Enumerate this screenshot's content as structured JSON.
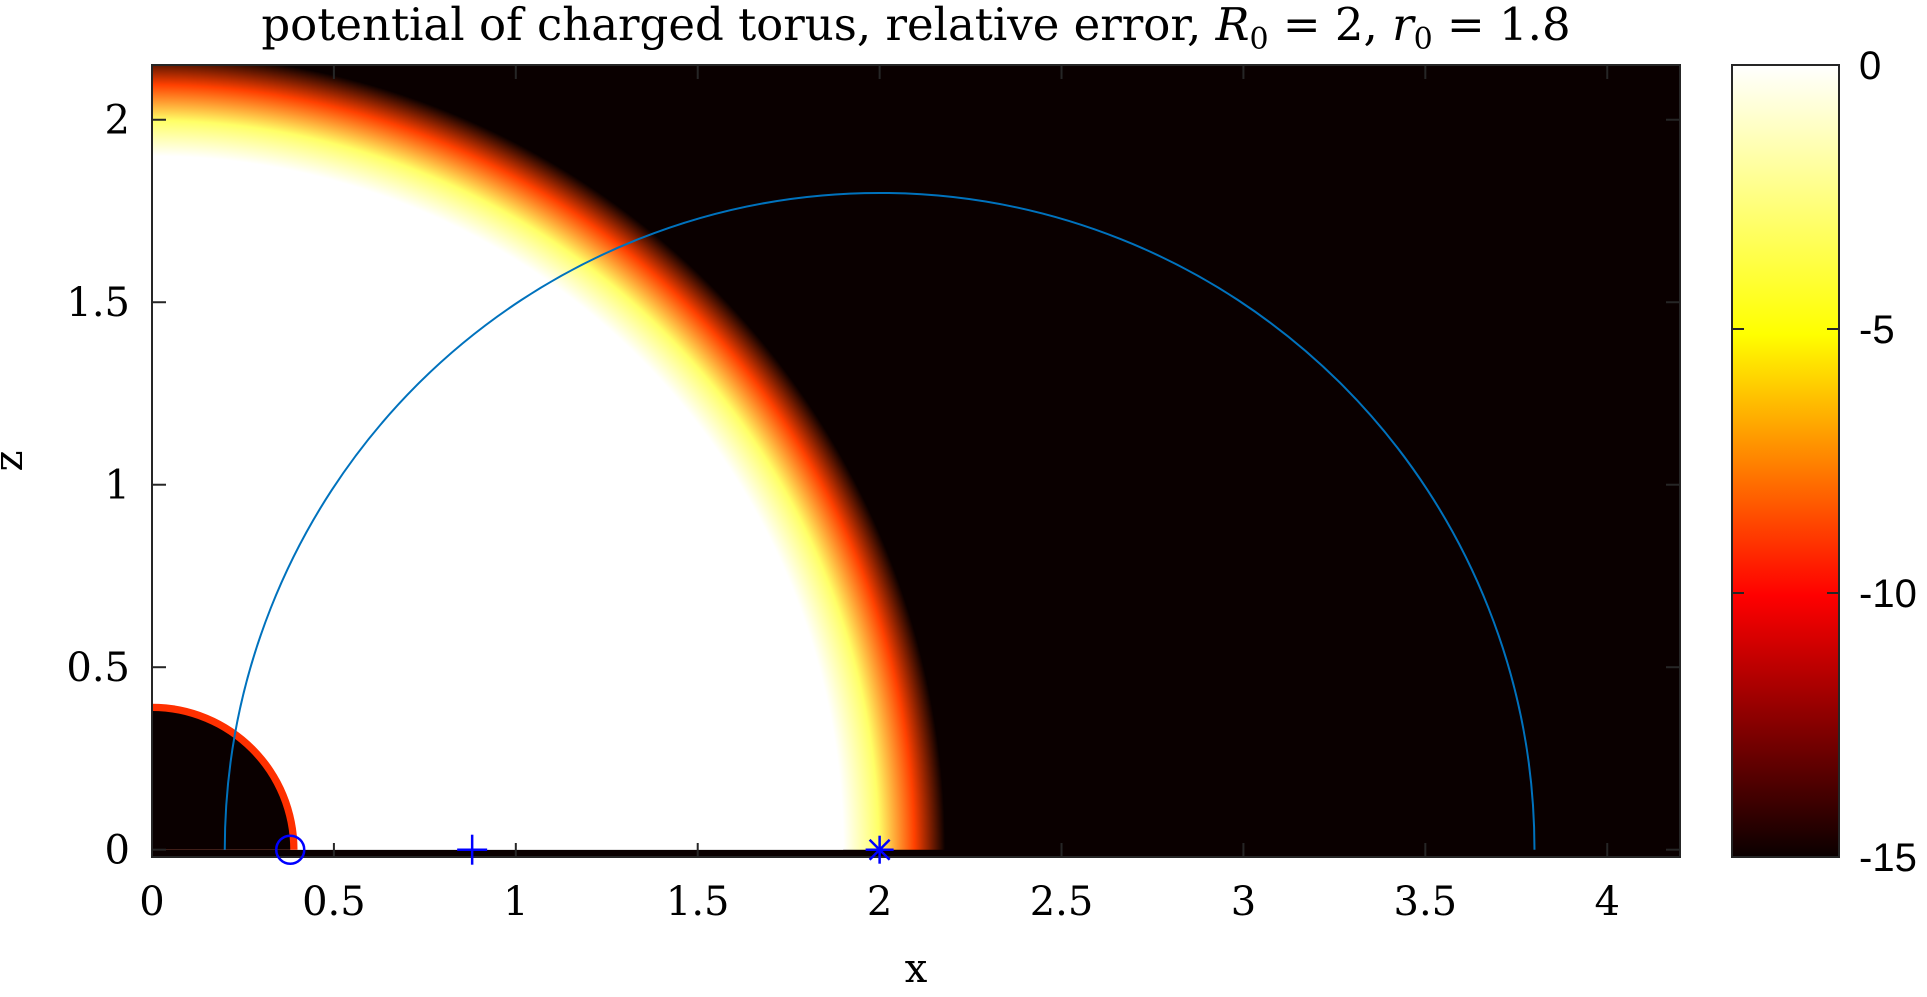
{
  "chart_data": {
    "type": "heatmap",
    "title": "potential of charged torus, relative error, R₀ = 2, r₀ = 1.8",
    "title_parts": {
      "prefix": "potential of charged torus, relative error, ",
      "R_sym": "R",
      "R_sub": "0",
      "R_val": " = 2, ",
      "r_sym": "r",
      "r_sub": "0",
      "r_val": " = 1.8"
    },
    "xlabel": "x",
    "ylabel": "z",
    "xlim": [
      0,
      4.2
    ],
    "ylim": [
      -0.02,
      2.15
    ],
    "xticks": [
      0,
      0.5,
      1,
      1.5,
      2,
      2.5,
      3,
      3.5,
      4
    ],
    "xtick_labels": [
      "0",
      "0.5",
      "1",
      "1.5",
      "2",
      "2.5",
      "3",
      "3.5",
      "4"
    ],
    "yticks": [
      0,
      0.5,
      1,
      1.5,
      2
    ],
    "ytick_labels": [
      "0",
      "0.5",
      "1",
      "1.5",
      "2"
    ],
    "grid": false,
    "colormap": "hot",
    "colorbar": {
      "range": [
        -15,
        0
      ],
      "ticks": [
        0,
        -5,
        -10,
        -15
      ],
      "tick_labels": [
        "0",
        "-5",
        "-10",
        "-15"
      ],
      "placement": "right"
    },
    "regions": [
      {
        "name": "inner dark disk",
        "shape": "quarter-disk",
        "center": [
          0,
          0
        ],
        "radius": 0.38,
        "value": -15
      },
      {
        "name": "bright quarter annulus",
        "shape": "quarter-annulus",
        "center": [
          0,
          0
        ],
        "inner_radius": 0.38,
        "outer_radius": 2.1,
        "value": 0
      },
      {
        "name": "transition band",
        "shape": "quarter-annulus",
        "center": [
          0,
          0
        ],
        "inner_radius": 1.9,
        "outer_radius": 2.18,
        "value_range": [
          -15,
          0
        ]
      },
      {
        "name": "outer dark region",
        "shape": "outside",
        "center": [
          0,
          0
        ],
        "radius": 2.18,
        "value": -15
      }
    ],
    "curve": {
      "name": "",
      "shape": "semicircle",
      "center": [
        2.0,
        0
      ],
      "radius": 1.8,
      "color": "#0072BD"
    },
    "markers": [
      {
        "symbol": "circle",
        "x": 0.38,
        "y": 0,
        "color": "#0000ff"
      },
      {
        "symbol": "plus",
        "x": 0.88,
        "y": 0,
        "color": "#0000ff"
      },
      {
        "symbol": "asterisk",
        "x": 2.0,
        "y": 0,
        "color": "#0000ff"
      }
    ]
  }
}
